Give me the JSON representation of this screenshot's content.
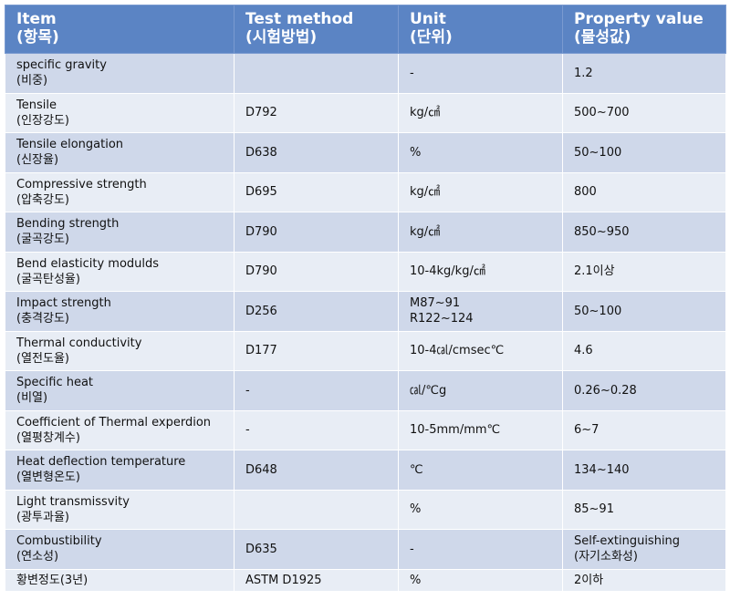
{
  "header": {
    "item": {
      "en": "Item",
      "ko": "(항목)"
    },
    "test_method": {
      "en": "Test method",
      "ko": "(시험방법)"
    },
    "unit": {
      "en": "Unit",
      "ko": "(단위)"
    },
    "value": {
      "en": "Property value",
      "ko": "(물성값)"
    }
  },
  "rows": [
    {
      "en": "specific gravity",
      "ko": "(비중)",
      "method": "",
      "unit": [
        "-"
      ],
      "value": [
        "1.2"
      ]
    },
    {
      "en": "Tensile",
      "ko": "(인장강도)",
      "method": "D792",
      "unit": [
        "kg/㎠"
      ],
      "value": [
        "500~700"
      ]
    },
    {
      "en": "Tensile elongation",
      "ko": "(신장율)",
      "method": "D638",
      "unit": [
        "%"
      ],
      "value": [
        "50~100"
      ]
    },
    {
      "en": "Compressive strength",
      "ko": "(압축강도)",
      "method": "D695",
      "unit": [
        "kg/㎠"
      ],
      "value": [
        "800"
      ]
    },
    {
      "en": "Bending strength",
      "ko": "(굴곡강도)",
      "method": "D790",
      "unit": [
        "kg/㎠"
      ],
      "value": [
        "850~950"
      ]
    },
    {
      "en": "Bend elasticity modulds",
      "ko": "(굴곡탄성율)",
      "method": "D790",
      "unit": [
        "10-4kg/kg/㎠"
      ],
      "value": [
        "2.1이상"
      ]
    },
    {
      "en": "Impact strength",
      "ko": "(충격강도)",
      "method": "D256",
      "unit": [
        "M87~91",
        "R122~124"
      ],
      "value": [
        "50~100"
      ]
    },
    {
      "en": "Thermal conductivity",
      "ko": "(열전도율)",
      "method": "D177",
      "unit": [
        "10-4㎈/cmsec℃"
      ],
      "value": [
        "4.6"
      ]
    },
    {
      "en": "Specific heat",
      "ko": "(비열)",
      "method": "-",
      "unit": [
        "㎈/℃g"
      ],
      "value": [
        "0.26~0.28"
      ]
    },
    {
      "en": "Coefficient of Thermal experdion",
      "ko": "(열평창계수)",
      "method": "-",
      "unit": [
        "10-5mm/mm℃"
      ],
      "value": [
        "6~7"
      ]
    },
    {
      "en": "Heat deflection temperature",
      "ko": "(열변형온도)",
      "method": "D648",
      "unit": [
        "℃"
      ],
      "value": [
        "134~140"
      ]
    },
    {
      "en": "Light transmissvity",
      "ko": "(광투과율)",
      "method": "",
      "unit": [
        "%"
      ],
      "value": [
        "85~91"
      ]
    },
    {
      "en": "Combustibility",
      "ko": "(연소성)",
      "method": "D635",
      "unit": [
        "-"
      ],
      "value": [
        "Self-extinguishing",
        "(자기소화성)"
      ]
    },
    {
      "en": "황변정도(3년)",
      "ko": "",
      "method": "ASTM D1925",
      "unit": [
        "%"
      ],
      "value": [
        "2이하"
      ]
    }
  ]
}
